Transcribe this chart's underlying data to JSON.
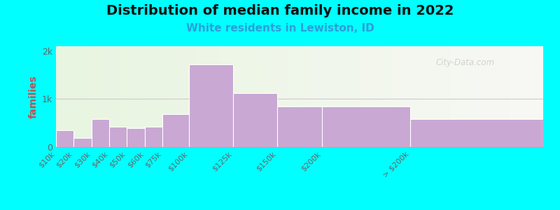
{
  "title": "Distribution of median family income in 2022",
  "subtitle": "White residents in Lewiston, ID",
  "ylabel": "families",
  "background_color": "#00FFFF",
  "bar_color": "#c9a8d4",
  "bar_edge_color": "#ffffff",
  "categories": [
    "$10k",
    "$20k",
    "$30k",
    "$40k",
    "$50k",
    "$60k",
    "$75k",
    "$100k",
    "$125k",
    "$150k",
    "$200k",
    "> $200k"
  ],
  "values": [
    350,
    190,
    590,
    430,
    390,
    420,
    680,
    1720,
    1120,
    850,
    850,
    580
  ],
  "bin_edges": [
    0,
    10,
    20,
    30,
    40,
    50,
    60,
    75,
    100,
    125,
    150,
    200,
    275
  ],
  "yticks": [
    0,
    1000,
    2000
  ],
  "ylim": [
    0,
    2100
  ],
  "ytick_labels": [
    "0",
    "1k",
    "2k"
  ],
  "watermark": "City-Data.com",
  "title_fontsize": 14,
  "subtitle_fontsize": 11,
  "subtitle_color": "#2a9fd8",
  "tick_color": "#666666",
  "ylabel_color": "#c05050"
}
